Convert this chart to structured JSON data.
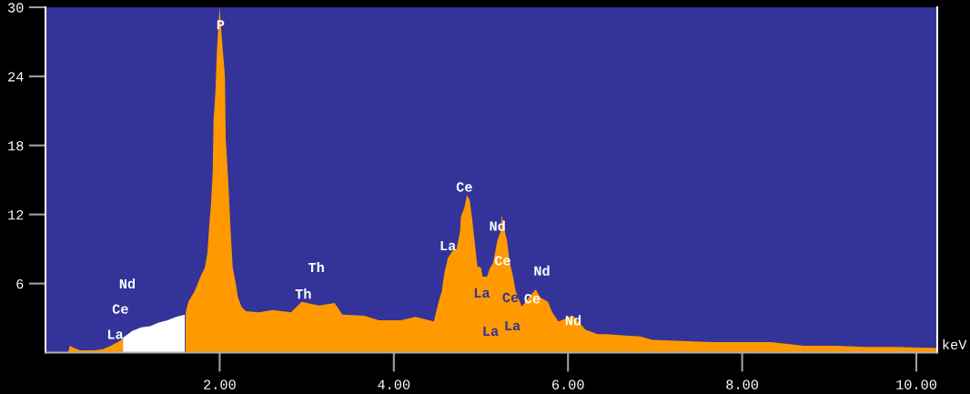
{
  "chart_data": {
    "type": "area",
    "xlabel": "keV",
    "xlim": [
      0,
      10.24
    ],
    "ylim": [
      0,
      30
    ],
    "xticks": [
      {
        "value": 2,
        "label": "2.00"
      },
      {
        "value": 4,
        "label": "4.00"
      },
      {
        "value": 6,
        "label": "6.00"
      },
      {
        "value": 8,
        "label": "8.00"
      },
      {
        "value": 10,
        "label": "10.00"
      }
    ],
    "yticks": [
      6,
      12,
      18,
      24,
      30
    ],
    "series": [
      {
        "color": "#ff9900",
        "x": [
          0.26,
          0.28,
          0.33,
          0.4,
          0.55,
          0.66,
          0.75,
          0.85,
          0.89
        ],
        "values": [
          0,
          0.6,
          0.4,
          0.2,
          0.2,
          0.3,
          0.6,
          1.0,
          1.2
        ]
      },
      {
        "color": "#ffffff",
        "x": [
          0.89,
          1.0,
          1.1,
          1.2,
          1.3,
          1.4,
          1.5,
          1.6
        ],
        "values": [
          1.3,
          1.9,
          2.2,
          2.3,
          2.6,
          2.8,
          3.1,
          3.3
        ]
      },
      {
        "color": "#ff9900",
        "x": [
          1.61,
          1.64,
          1.71,
          1.78,
          1.83,
          1.86,
          1.88,
          1.9,
          1.92,
          1.93,
          1.95,
          1.97,
          2.0,
          2.02,
          2.06,
          2.07,
          2.1,
          2.13,
          2.15,
          2.19,
          2.21,
          2.25,
          2.3,
          2.45,
          2.61,
          2.82,
          2.94,
          3.14,
          3.32,
          3.41,
          3.66,
          3.83,
          4.08,
          4.25,
          4.46,
          4.51,
          4.55,
          4.58,
          4.62,
          4.67,
          4.72,
          4.76,
          4.77,
          4.81,
          4.84,
          4.87,
          4.9,
          4.93,
          4.96,
          5.0,
          5.02,
          5.07,
          5.1,
          5.14,
          5.19,
          5.23,
          5.24,
          5.26,
          5.3,
          5.33,
          5.37,
          5.4,
          5.47,
          5.54,
          5.63,
          5.68,
          5.77,
          5.82,
          5.89,
          6.06,
          6.2,
          6.34,
          6.45,
          6.62,
          6.83,
          6.97,
          7.32,
          7.67,
          8.01,
          8.33,
          8.71,
          9.06,
          9.41,
          9.76,
          10.23
        ],
        "values": [
          3.5,
          4.4,
          5.3,
          6.6,
          7.4,
          8.7,
          11.0,
          12.9,
          15.7,
          20.2,
          22.5,
          26.5,
          30,
          27.8,
          24.1,
          18.6,
          14.7,
          10.0,
          7.4,
          5.8,
          4.8,
          4.0,
          3.6,
          3.5,
          3.7,
          3.5,
          4.4,
          4.1,
          4.3,
          3.3,
          3.2,
          2.8,
          2.8,
          3.1,
          2.7,
          4.3,
          5.3,
          6.9,
          8.2,
          8.8,
          9.0,
          10.5,
          11.8,
          12.6,
          13.7,
          13.3,
          11.6,
          9.5,
          7.5,
          7.4,
          6.6,
          6.6,
          7.3,
          7.8,
          9.8,
          10.6,
          12.0,
          11.0,
          9.7,
          7.9,
          6.6,
          5.3,
          4.0,
          4.7,
          5.5,
          4.8,
          4.4,
          3.5,
          2.7,
          3.2,
          2.0,
          1.6,
          1.6,
          1.5,
          1.4,
          1.1,
          1.0,
          0.9,
          0.9,
          0.9,
          0.6,
          0.6,
          0.5,
          0.5,
          0.4
        ]
      }
    ],
    "annotations": [
      {
        "text": "La",
        "x": 0.8,
        "y": 0.8
      },
      {
        "text": "Ce",
        "x": 0.86,
        "y": 1.1
      },
      "Nd",
      {
        "text": "P",
        "x": 2.01,
        "y": 28.9
      },
      {
        "text": "Th",
        "x": 2.96,
        "y": 4.4
      },
      {
        "text": "Th",
        "x": 3.11,
        "y": 4.1
      },
      {
        "text": "La",
        "x": 4.62,
        "y": 8.2
      },
      {
        "text": "Ce",
        "x": 4.81,
        "y": 12.6
      },
      {
        "text": "Nd",
        "x": 5.19,
        "y": 9.8
      },
      {
        "text": "Ce",
        "x": 5.25,
        "y": 11.5
      },
      {
        "text": "Nd",
        "x": 5.7,
        "y": 4.7
      },
      {
        "text": "La",
        "x": 5.01,
        "y": 7.0
      },
      {
        "text": "Ce",
        "x": 5.34,
        "y": 7.6
      },
      {
        "text": "Ce",
        "x": 5.59,
        "y": 5.1
      },
      "La",
      "La",
      {
        "text": "Nd",
        "x": 6.06,
        "y": 3.2
      }
    ]
  }
}
